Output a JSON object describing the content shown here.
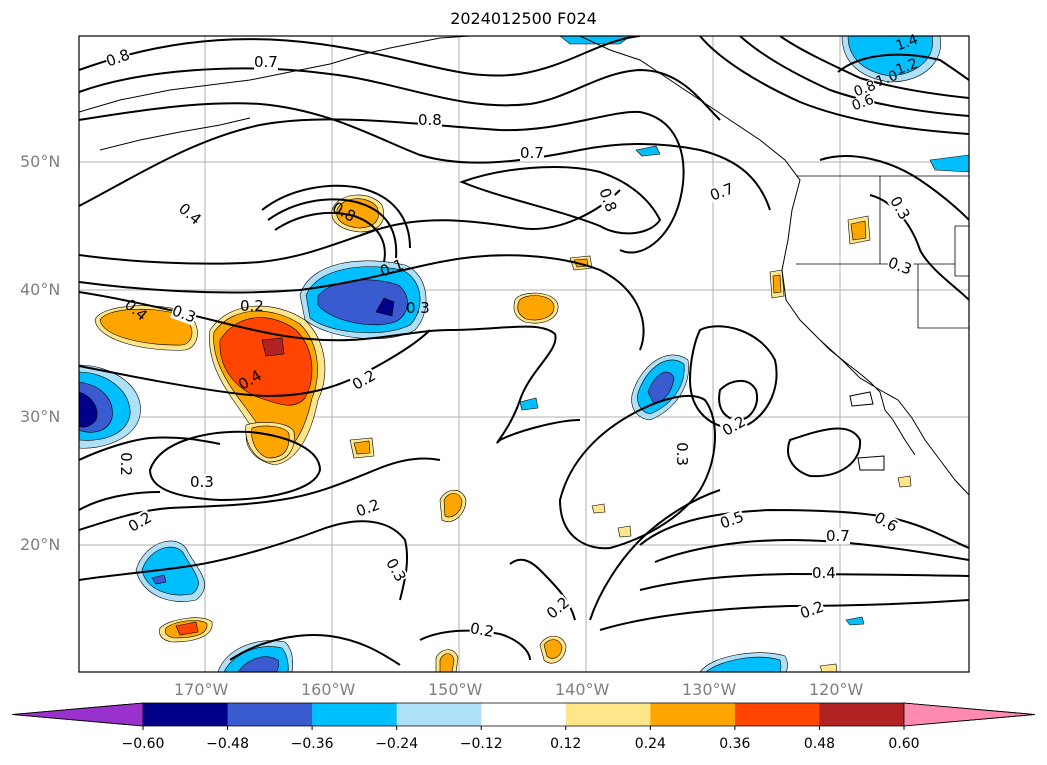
{
  "title": "2024012500 F024",
  "lat_labels": [
    "50°N",
    "40°N",
    "30°N",
    "20°N"
  ],
  "lon_labels": [
    "170°W",
    "160°W",
    "150°W",
    "140°W",
    "130°W",
    "120°W"
  ],
  "contour_labels": [
    "0.8",
    "0.7",
    "0.8",
    "0.7",
    "0.8",
    "0.7",
    "0.4",
    "0.8",
    "0.1",
    "0.3",
    "0.2",
    "0.4",
    "0.3",
    "0.4",
    "0.2",
    "0.2",
    "0.3",
    "0.2",
    "0.2",
    "0.3",
    "0.2",
    "0.2",
    "0.3",
    "0.2",
    "0.5",
    "0.6",
    "0.7",
    "0.4",
    "0.2",
    "0.3",
    "0.3",
    "1.4",
    "1.2",
    "1.0",
    "0.8",
    "0.6"
  ],
  "colorbar": {
    "ticks": [
      "−0.60",
      "−0.48",
      "−0.36",
      "−0.24",
      "−0.12",
      "0.12",
      "0.24",
      "0.36",
      "0.48",
      "0.60"
    ],
    "colors": [
      "#9932cc",
      "#00008b",
      "#3a5bd0",
      "#00bfff",
      "#aee0f8",
      "#ffffff",
      "#ffe68a",
      "#ffa500",
      "#ff4500",
      "#b22222",
      "#ff8ab0"
    ]
  }
}
